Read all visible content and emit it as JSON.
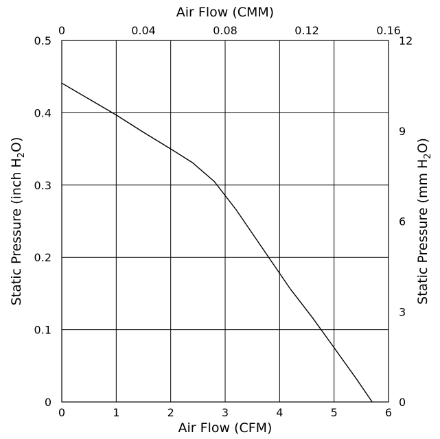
{
  "chart_data": {
    "type": "line",
    "x_bottom": {
      "label": "Air Flow (CFM)",
      "range": [
        0,
        6
      ],
      "ticks": [
        "0",
        "1",
        "2",
        "3",
        "4",
        "5",
        "6"
      ]
    },
    "x_top": {
      "label": "Air Flow (CMM)",
      "range": [
        0,
        0.16
      ],
      "ticks": [
        "0",
        "0.04",
        "0.08",
        "0.12",
        "0.16"
      ]
    },
    "y_left": {
      "label_main": "Static Pressure (inch H",
      "label_sub": "2",
      "label_tail": "O)",
      "range": [
        0,
        0.5
      ],
      "ticks": [
        "0",
        "0.1",
        "0.2",
        "0.3",
        "0.4",
        "0.5"
      ]
    },
    "y_right": {
      "label_main": "Static Pressure (mm H",
      "label_sub": "2",
      "label_tail": "O)",
      "range": [
        0,
        12
      ],
      "ticks": [
        "0",
        "3",
        "6",
        "9",
        "12"
      ]
    },
    "grid": true,
    "series": [
      {
        "x": [
          0,
          0.5,
          1.0,
          1.5,
          2.0,
          2.4,
          2.8,
          3.2,
          3.6,
          4.0,
          4.2,
          4.6,
          5.0,
          5.4,
          5.7
        ],
        "y": [
          0.441,
          0.419,
          0.397,
          0.373,
          0.35,
          0.331,
          0.305,
          0.266,
          0.222,
          0.178,
          0.156,
          0.117,
          0.075,
          0.033,
          0.0
        ]
      }
    ]
  }
}
